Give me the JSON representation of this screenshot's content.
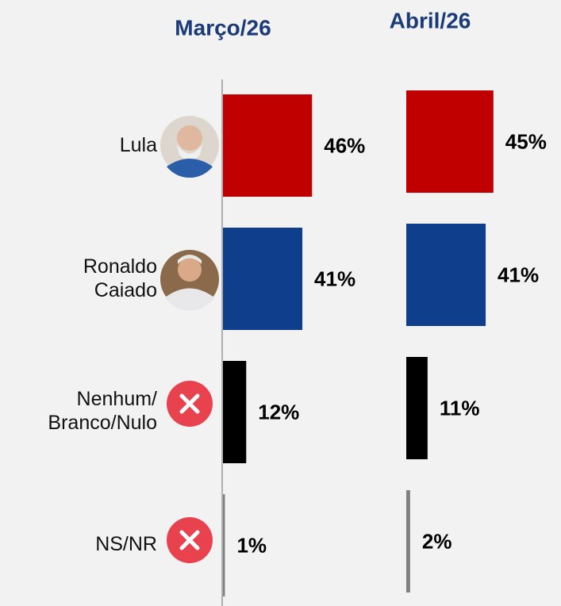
{
  "chart_data": {
    "type": "hbar",
    "categories": [
      "Lula",
      "Ronaldo\nCaiado",
      "Nenhum/\nBranco/Nulo",
      "NS/NR"
    ],
    "colors": [
      "#c00000",
      "#0f3e8c",
      "#000000",
      "#808080"
    ],
    "series": [
      {
        "name": "Março/26",
        "values": [
          46,
          41,
          12,
          1
        ],
        "value_labels": [
          "46%",
          "41%",
          "12%",
          "1%"
        ]
      },
      {
        "name": "Abril/26",
        "values": [
          45,
          41,
          11,
          2
        ],
        "value_labels": [
          "45%",
          "41%",
          "11%",
          "2%"
        ]
      }
    ]
  }
}
